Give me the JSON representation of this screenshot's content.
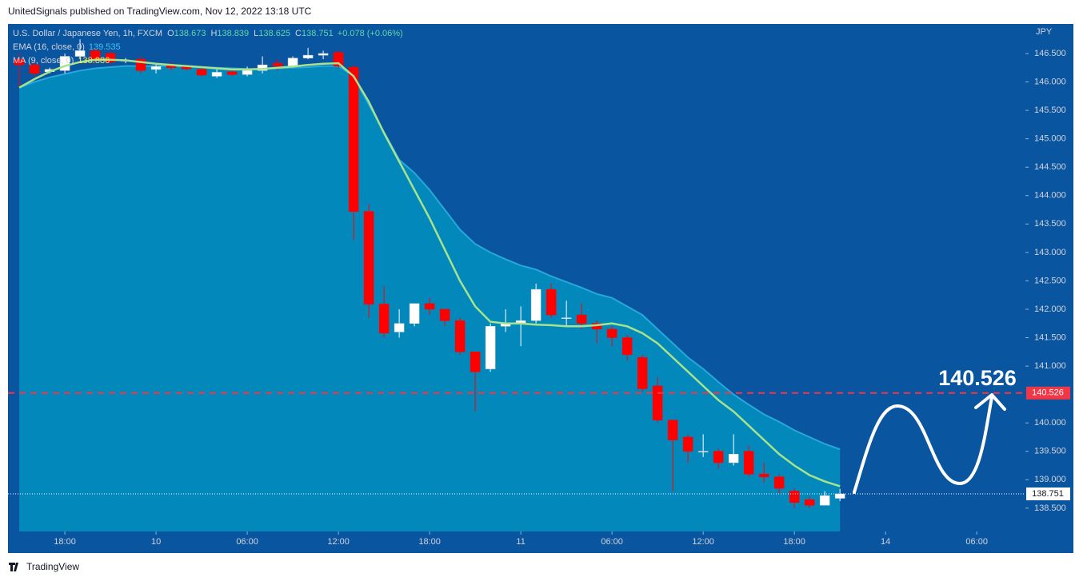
{
  "published": "UnitedSignals published on TradingView.com, Nov 12, 2022 13:18 UTC",
  "brand": "TradingView",
  "chart_data": {
    "type": "candlestick",
    "title": "U.S. Dollar / Japanese Yen, 1h, FXCM",
    "ohlc_labels": [
      "O",
      "H",
      "L",
      "C"
    ],
    "change": "+0.078 (+0.06%)",
    "y_axis_label": "JPY",
    "up_color": "#ffffff",
    "down_color": "#ff0000",
    "x": [
      0,
      1,
      2,
      3,
      4,
      5,
      6,
      7,
      8,
      9,
      10,
      11,
      12,
      13,
      14,
      15,
      16,
      17,
      18,
      19,
      20,
      21,
      22,
      23,
      24,
      25,
      26,
      27,
      28,
      29,
      30,
      31,
      32,
      33,
      34,
      35,
      36,
      37,
      38,
      39,
      40,
      41,
      42,
      43,
      44,
      45,
      46,
      47,
      48,
      49,
      50,
      51,
      52,
      53,
      54
    ],
    "open": [
      146.4,
      146.3,
      146.18,
      146.2,
      146.45,
      146.55,
      146.5,
      146.38,
      146.4,
      146.22,
      146.3,
      146.27,
      146.22,
      146.1,
      146.18,
      146.13,
      146.2,
      146.33,
      146.28,
      146.42,
      146.47,
      146.52,
      146.26,
      143.72,
      142.09,
      141.6,
      141.75,
      142.1,
      142.0,
      141.8,
      141.25,
      140.95,
      141.7,
      141.75,
      141.8,
      142.35,
      141.85,
      141.9,
      141.75,
      141.65,
      141.5,
      141.15,
      140.65,
      140.05,
      139.75,
      139.5,
      139.5,
      139.3,
      139.5,
      139.1,
      139.05,
      138.8,
      138.65,
      138.55,
      138.673
    ],
    "high": [
      146.5,
      146.35,
      146.25,
      146.5,
      146.75,
      146.6,
      146.55,
      146.42,
      146.45,
      146.3,
      146.35,
      146.3,
      146.25,
      146.22,
      146.2,
      146.27,
      146.45,
      146.4,
      146.45,
      146.6,
      146.55,
      146.55,
      146.3,
      143.85,
      142.4,
      142.0,
      142.1,
      142.2,
      142.0,
      141.85,
      141.25,
      141.75,
      142.0,
      142.05,
      142.45,
      142.45,
      142.15,
      142.1,
      141.8,
      141.7,
      141.55,
      141.2,
      140.8,
      140.05,
      139.8,
      139.8,
      139.55,
      139.8,
      139.6,
      139.3,
      139.1,
      138.85,
      138.7,
      138.8,
      138.839
    ],
    "low": [
      145.9,
      146.1,
      146.15,
      146.15,
      146.4,
      146.35,
      146.3,
      146.33,
      146.15,
      146.15,
      146.2,
      146.2,
      146.1,
      146.07,
      146.1,
      146.1,
      146.15,
      146.2,
      146.25,
      146.4,
      146.4,
      146.25,
      143.22,
      141.85,
      141.5,
      141.5,
      141.7,
      141.9,
      141.7,
      141.2,
      140.2,
      140.9,
      141.6,
      141.35,
      141.75,
      141.85,
      141.7,
      141.65,
      141.4,
      141.35,
      141.1,
      140.55,
      140.0,
      138.8,
      139.3,
      139.4,
      139.2,
      139.25,
      139.05,
      138.95,
      138.75,
      138.5,
      138.5,
      138.55,
      138.625
    ],
    "close": [
      146.3,
      146.15,
      146.22,
      146.45,
      146.55,
      146.4,
      146.35,
      146.38,
      146.2,
      146.27,
      146.25,
      146.23,
      146.12,
      146.17,
      146.13,
      146.2,
      146.3,
      146.28,
      146.42,
      146.47,
      146.5,
      146.28,
      143.72,
      142.09,
      141.58,
      141.75,
      142.1,
      142.0,
      141.8,
      141.25,
      140.9,
      141.7,
      141.75,
      141.8,
      142.35,
      141.9,
      141.85,
      141.75,
      141.65,
      141.5,
      141.2,
      140.6,
      140.05,
      139.7,
      139.5,
      139.5,
      139.3,
      139.45,
      139.1,
      139.05,
      138.85,
      138.6,
      138.55,
      138.72,
      138.751
    ],
    "series": [
      {
        "name": "EMA (16, close, 0)",
        "color": "#27a8da",
        "fill": "#0388bb",
        "value_color": "#3fc4ef",
        "values": [
          145.9,
          146.0,
          146.08,
          146.14,
          146.2,
          146.24,
          146.26,
          146.28,
          146.28,
          146.28,
          146.28,
          146.27,
          146.26,
          146.25,
          146.24,
          146.23,
          146.23,
          146.24,
          146.25,
          146.26,
          146.28,
          146.28,
          146.1,
          145.6,
          145.12,
          144.63,
          144.4,
          144.1,
          143.75,
          143.4,
          143.15,
          143.0,
          142.88,
          142.77,
          142.7,
          142.58,
          142.48,
          142.38,
          142.27,
          142.2,
          142.05,
          141.9,
          141.65,
          141.4,
          141.15,
          140.95,
          140.72,
          140.5,
          140.32,
          140.15,
          140.02,
          139.87,
          139.75,
          139.63,
          139.535
        ]
      },
      {
        "name": "MA (9, close, 0)",
        "color": "#a6e38c",
        "value_color": "#f5e663",
        "values": [
          145.9,
          146.05,
          146.18,
          146.28,
          146.35,
          146.39,
          146.39,
          146.38,
          146.35,
          146.32,
          146.3,
          146.28,
          146.26,
          146.24,
          146.22,
          146.22,
          146.23,
          146.25,
          146.27,
          146.3,
          146.32,
          146.33,
          146.1,
          145.65,
          145.1,
          144.6,
          144.1,
          143.6,
          143.05,
          142.5,
          142.05,
          141.78,
          141.75,
          141.75,
          141.73,
          141.72,
          141.7,
          141.7,
          141.72,
          141.75,
          141.7,
          141.58,
          141.4,
          141.15,
          140.9,
          140.65,
          140.4,
          140.2,
          139.95,
          139.7,
          139.45,
          139.25,
          139.08,
          138.97,
          138.886
        ]
      }
    ],
    "target": {
      "value": 140.526,
      "color": "#f23645"
    },
    "ylim": [
      138.09,
      147.02
    ],
    "yticks": [
      {
        "value": 138.5,
        "label": "138.500"
      },
      {
        "value": 139,
        "label": "139.000"
      },
      {
        "value": 139.5,
        "label": "139.500"
      },
      {
        "value": 140,
        "label": "140.000"
      },
      {
        "value": 141,
        "label": "141.000"
      },
      {
        "value": 141.5,
        "label": "141.500"
      },
      {
        "value": 142,
        "label": "142.000"
      },
      {
        "value": 142.5,
        "label": "142.500"
      },
      {
        "value": 143,
        "label": "143.000"
      },
      {
        "value": 143.5,
        "label": "143.500"
      },
      {
        "value": 144,
        "label": "144.000"
      },
      {
        "value": 144.5,
        "label": "144.500"
      },
      {
        "value": 145,
        "label": "145.000"
      },
      {
        "value": 145.5,
        "label": "145.500"
      },
      {
        "value": 146,
        "label": "146.000"
      },
      {
        "value": 146.5,
        "label": "146.500"
      }
    ],
    "xlim": [
      -0.74,
      66.2
    ],
    "xticks": [
      {
        "value": 3,
        "label": "18:00"
      },
      {
        "value": 9,
        "label": "10"
      },
      {
        "value": 15,
        "label": "06:00"
      },
      {
        "value": 21,
        "label": "12:00"
      },
      {
        "value": 27,
        "label": "18:00"
      },
      {
        "value": 33,
        "label": "11"
      },
      {
        "value": 39,
        "label": "06:00"
      },
      {
        "value": 45,
        "label": "12:00"
      },
      {
        "value": 51,
        "label": "18:00"
      },
      {
        "value": 57,
        "label": "14"
      },
      {
        "value": 63,
        "label": "06:00"
      }
    ]
  }
}
